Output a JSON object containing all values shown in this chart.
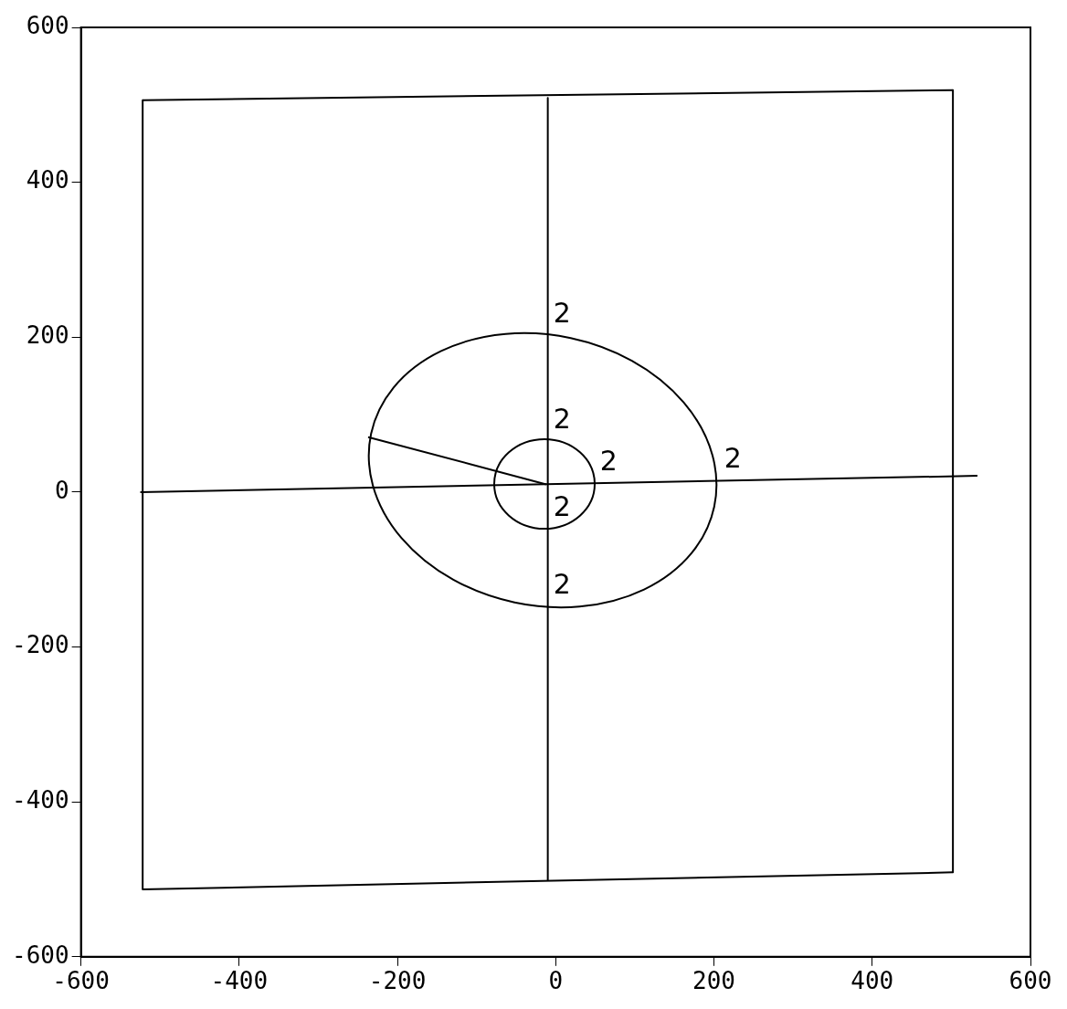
{
  "chart_data": {
    "type": "line",
    "marker": "none",
    "line_style": "solid",
    "legend": false,
    "grid": false,
    "xlim": [
      -600,
      600
    ],
    "xticks": [
      -600,
      -400,
      -200,
      0,
      200,
      400,
      600
    ],
    "ylim": [
      -600,
      600
    ],
    "yticks": [
      -600,
      -400,
      -200,
      0,
      200,
      400,
      600
    ],
    "series": [
      {
        "color": "#000000",
        "x": [
          -522,
          502
        ],
        "values": [
          506,
          519
        ]
      },
      {
        "color": "#000000",
        "x": [
          -522,
          502
        ],
        "values": [
          -513,
          -491
        ]
      },
      {
        "color": "#000000",
        "x": [
          -522,
          -522
        ],
        "values": [
          506,
          -513
        ]
      },
      {
        "color": "#000000",
        "x": [
          502,
          502
        ],
        "values": [
          519,
          -491
        ]
      },
      {
        "color": "#000000",
        "x": [
          -525,
          533
        ],
        "values": [
          0,
          21
        ]
      },
      {
        "color": "#000000",
        "x": [
          -10,
          -10
        ],
        "values": [
          509,
          -501
        ]
      },
      {
        "color": "#000000",
        "x": [
          -237,
          -12
        ],
        "values": [
          71,
          10
        ]
      }
    ],
    "annotations": [
      {
        "text": "2",
        "x": -10,
        "y": 202
      },
      {
        "text": "2",
        "x": -10,
        "y": 66
      },
      {
        "text": "2",
        "x": 49,
        "y": 11
      },
      {
        "text": "2",
        "x": -10,
        "y": -47
      },
      {
        "text": "2",
        "x": 206,
        "y": 15
      },
      {
        "text": "2",
        "x": -10,
        "y": -148
      }
    ]
  }
}
